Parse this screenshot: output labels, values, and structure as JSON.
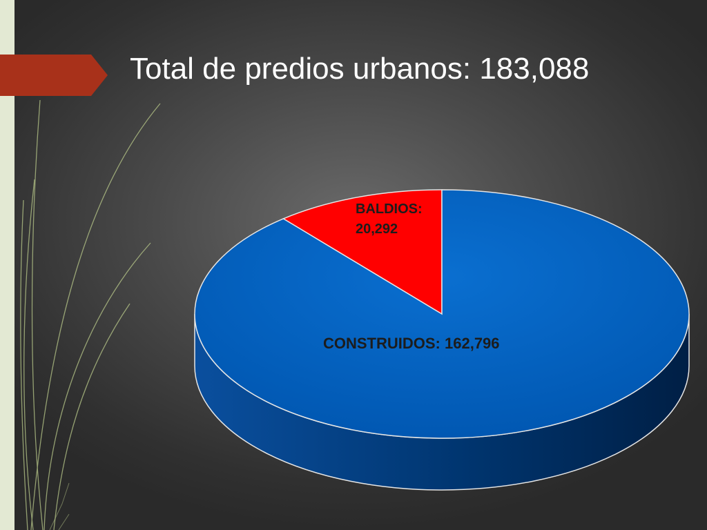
{
  "slide": {
    "title": "Total de predios urbanos: 183,088"
  },
  "chart_data": {
    "type": "pie",
    "title": "",
    "slices": [
      {
        "label": "BALDIOS:",
        "value_label": "20,292",
        "value": 20292,
        "color": "#ff0000"
      },
      {
        "label": "CONSTRUIDOS: 162,796",
        "value_label": "",
        "value": 162796,
        "color": "#0066c6"
      }
    ],
    "total": 183088,
    "style": "3d"
  },
  "colors": {
    "background": "#3c3c3c",
    "left_band": "#e3e9d3",
    "title_arrow": "#a8311a",
    "deco_lines": "#b9c98a",
    "label_text": "#1c1c1c"
  }
}
